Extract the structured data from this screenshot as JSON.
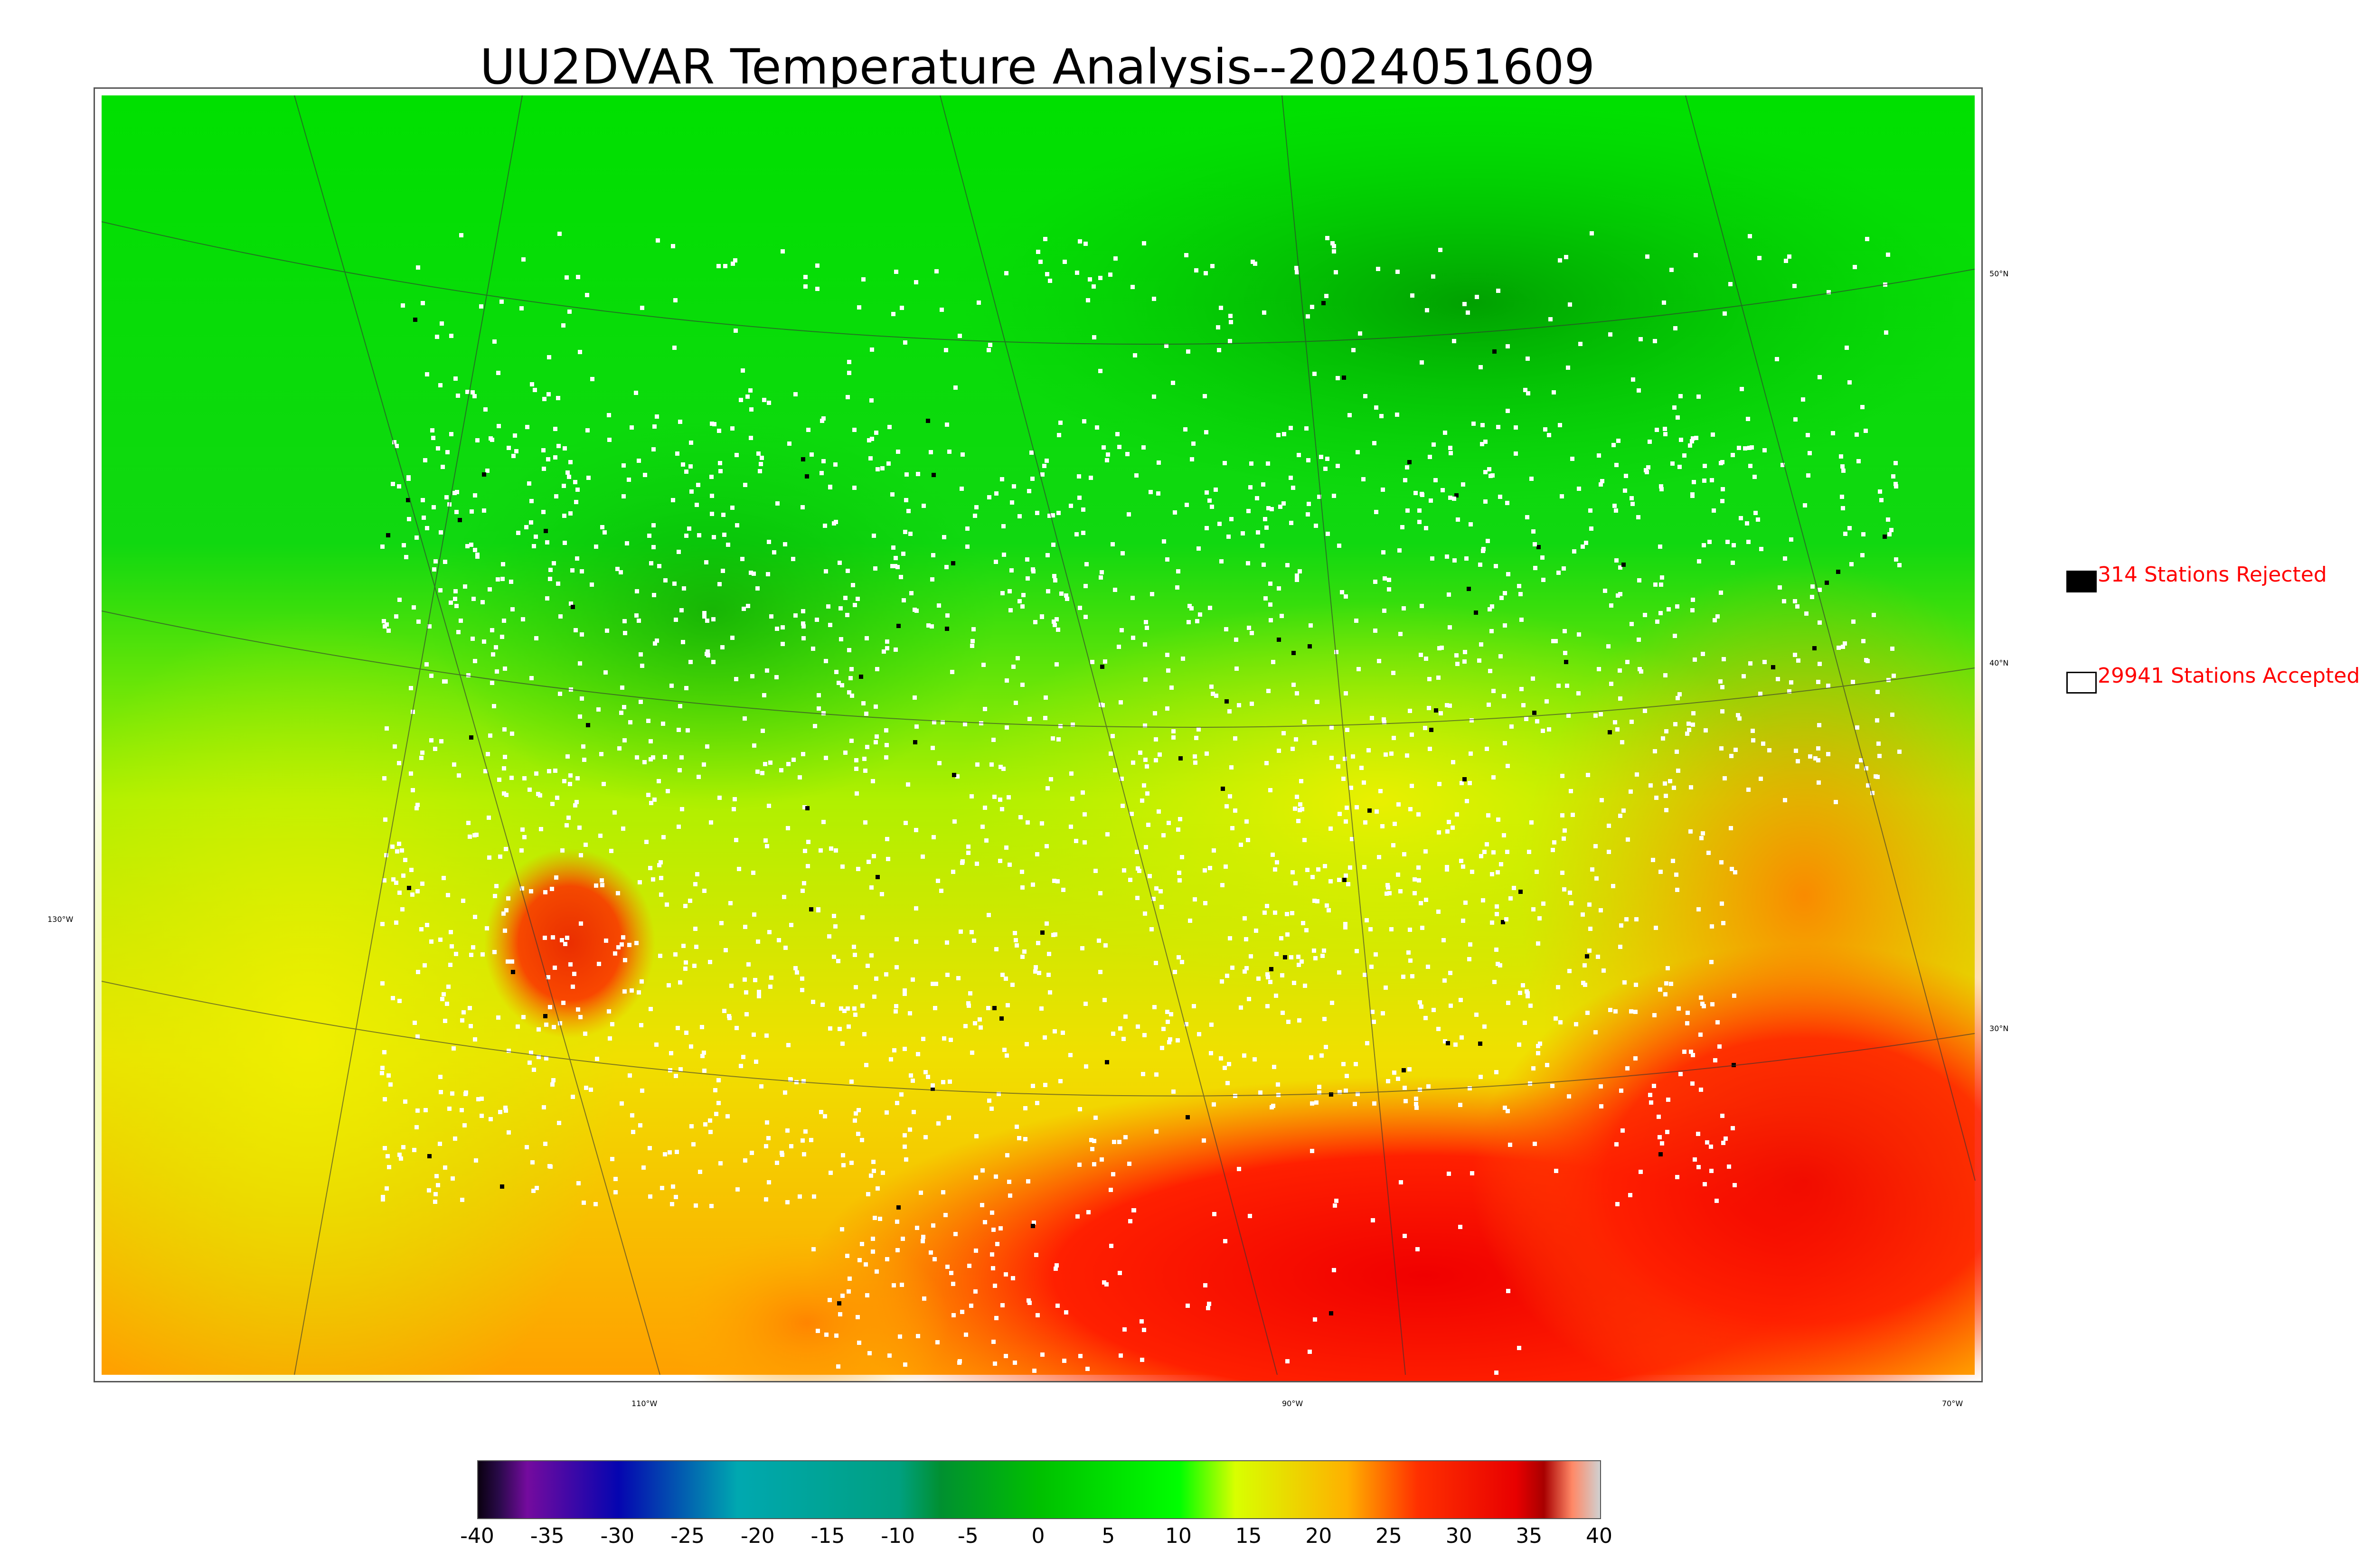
{
  "title": "UU2DVAR Temperature Analysis--2024051609",
  "legend": {
    "rejected": {
      "label": "314 Stations Rejected",
      "swatch_color": "#000000"
    },
    "accepted": {
      "label": "29941 Stations Accepted",
      "swatch_color": "#ffffff"
    },
    "text_color": "#ff0000"
  },
  "graticule": {
    "lat_labels": [
      "50°N",
      "40°N",
      "30°N"
    ],
    "lon_labels": [
      "130°W",
      "110°W",
      "90°W",
      "70°W"
    ]
  },
  "colorbar": {
    "min": -40,
    "max": 40,
    "ticks": [
      "-40",
      "-35",
      "-30",
      "-25",
      "-20",
      "-15",
      "-10",
      "-5",
      "0",
      "5",
      "10",
      "15",
      "20",
      "25",
      "30",
      "35",
      "40"
    ],
    "stops": [
      {
        "v": -40,
        "c": "#0a0010"
      },
      {
        "v": -38.5,
        "c": "#2a0a4a"
      },
      {
        "v": -36.5,
        "c": "#740b9e"
      },
      {
        "v": -30,
        "c": "#0505b0"
      },
      {
        "v": -21.5,
        "c": "#00a8b0"
      },
      {
        "v": -10,
        "c": "#00a080"
      },
      {
        "v": -7,
        "c": "#009030"
      },
      {
        "v": 0,
        "c": "#00c000"
      },
      {
        "v": 10,
        "c": "#00ff00"
      },
      {
        "v": 14,
        "c": "#d8ff00"
      },
      {
        "v": 22,
        "c": "#ffb000"
      },
      {
        "v": 27,
        "c": "#ff3000"
      },
      {
        "v": 34,
        "c": "#e80000"
      },
      {
        "v": 36,
        "c": "#a80000"
      },
      {
        "v": 38,
        "c": "#ff8866"
      },
      {
        "v": 40,
        "c": "#d0d0d0"
      }
    ]
  }
}
